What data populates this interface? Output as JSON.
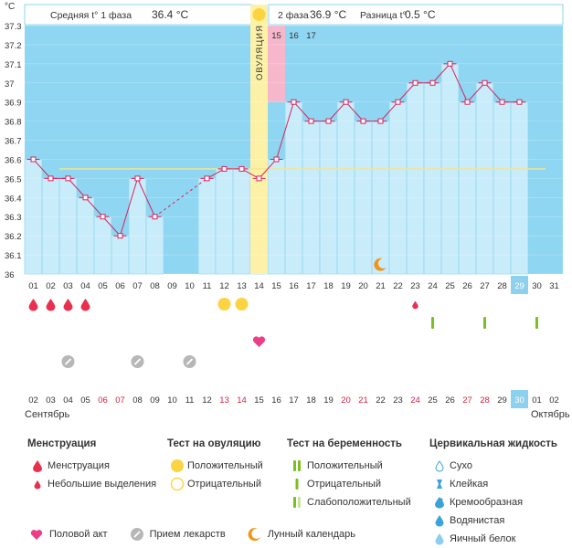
{
  "header": {
    "phase1_text": "Средняя t° 1 фаза",
    "phase1_value": "36.4 °C",
    "phase2_text": "2 фаза",
    "phase2_value": "36.9 °C",
    "diff_text": "Разница t°",
    "diff_value": "0.5 °C",
    "unit": "°C",
    "ovulation_label": "ОВУЛЯЦИЯ"
  },
  "chart_data": {
    "type": "line",
    "title": "",
    "ylabel": "°C",
    "ylim": [
      36.0,
      37.3
    ],
    "yticks": [
      "36",
      "36.1",
      "36.2",
      "36.3",
      "36.4",
      "36.5",
      "36.6",
      "36.7",
      "36.8",
      "36.9",
      "37",
      "37.1",
      "37.2",
      "37.3"
    ],
    "cycle_days": [
      "01",
      "02",
      "03",
      "04",
      "05",
      "06",
      "07",
      "08",
      "09",
      "10",
      "11",
      "12",
      "13",
      "14",
      "15",
      "16",
      "17",
      "18",
      "19",
      "20",
      "21",
      "22",
      "23",
      "24",
      "25",
      "26",
      "27",
      "28",
      "29",
      "30",
      "31"
    ],
    "top_days": [
      "01",
      "02",
      "03",
      "04",
      "05",
      "06",
      "07",
      "08",
      "09",
      "10",
      "11",
      "12",
      "13",
      "14",
      "15",
      "16",
      "17"
    ],
    "dates": [
      "02",
      "03",
      "04",
      "05",
      "06",
      "07",
      "08",
      "09",
      "10",
      "11",
      "12",
      "13",
      "14",
      "15",
      "16",
      "17",
      "18",
      "19",
      "20",
      "21",
      "22",
      "23",
      "24",
      "25",
      "26",
      "27",
      "28",
      "29",
      "30",
      "01",
      "02"
    ],
    "date_weekend": [
      false,
      false,
      false,
      false,
      true,
      true,
      false,
      false,
      false,
      false,
      false,
      true,
      true,
      false,
      false,
      false,
      false,
      false,
      true,
      true,
      false,
      false,
      true,
      false,
      false,
      true,
      true,
      false,
      false,
      false,
      false
    ],
    "month_left": "Сентябрь",
    "month_right": "Октябрь",
    "today_day_index": 28,
    "temperatures": [
      36.6,
      36.5,
      36.5,
      36.4,
      36.3,
      36.2,
      36.5,
      36.3,
      null,
      null,
      36.5,
      36.55,
      36.55,
      36.5,
      36.6,
      36.9,
      36.8,
      36.8,
      36.9,
      36.8,
      36.8,
      36.9,
      37.0,
      37.0,
      37.1,
      36.9,
      37.0,
      36.9,
      36.9,
      null,
      null
    ],
    "coverline": 36.55,
    "ovulation_day": 14,
    "highlight_top_day": 15,
    "moon_day": 21,
    "menstruation_days": [
      1,
      2,
      3,
      4
    ],
    "light_spotting_days": [
      23
    ],
    "ovulation_test_positive_days": [
      12,
      13
    ],
    "pregnancy_test_negative_days": [
      24,
      27,
      30
    ],
    "medication_days": [
      3,
      7,
      10
    ],
    "intercourse_days": [
      14
    ]
  },
  "legend": {
    "menstruation": {
      "title": "Менструация",
      "items": [
        "Менструация",
        "Небольшие выделения"
      ]
    },
    "ovulation_test": {
      "title": "Тест на овуляцию",
      "items": [
        "Положительный",
        "Отрицательный"
      ]
    },
    "pregnancy_test": {
      "title": "Тест на беременность",
      "items": [
        "Положительный",
        "Отрицательный",
        "Слабоположительный"
      ]
    },
    "cervical": {
      "title": "Цервикальная жидкость",
      "items": [
        "Сухо",
        "Клейкая",
        "Кремообразная",
        "Водянистая",
        "Яичный белок"
      ]
    },
    "bottom": [
      "Половой акт",
      "Прием лекарств",
      "Лунный календарь"
    ]
  },
  "colors": {
    "bg_chart": "#8ed6f1",
    "bar_fill": "#c9ecfa",
    "bar_stroke": "#8ed6f1",
    "line": "#d6245f",
    "ovulation_band": "#fdf1a7",
    "highlight_pink": "#f6b6cb",
    "today": "#8dd1ee",
    "blood": "#e8304e",
    "ov_test": "#fbd444",
    "preg_test": "#7cbf21",
    "pill": "#b7b7b7",
    "heart": "#ec3d89",
    "moon": "#f0951c",
    "weekend": "#d2213f"
  }
}
